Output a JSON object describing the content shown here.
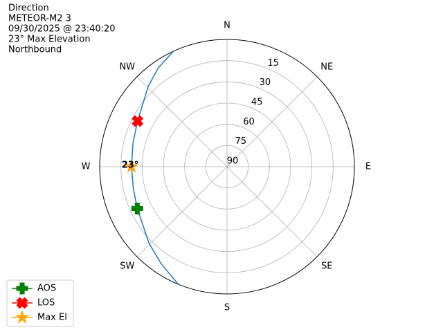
{
  "chart_data": {
    "type": "polar",
    "title_lines": [
      "Direction",
      "METEOR-M2 3",
      "09/30/2025 @ 23:40:20",
      "23° Max Elevation",
      "Northbound"
    ],
    "rlim": [
      90,
      0
    ],
    "rticks": [
      15,
      30,
      45,
      60,
      75,
      90
    ],
    "xticks": [
      {
        "value": 0,
        "label": "N"
      },
      {
        "value": 45,
        "label": "NE"
      },
      {
        "value": 90,
        "label": "E"
      },
      {
        "value": 135,
        "label": "SE"
      },
      {
        "value": 180,
        "label": "S"
      },
      {
        "value": 225,
        "label": "SW"
      },
      {
        "value": 270,
        "label": "W"
      },
      {
        "value": 315,
        "label": "NW"
      }
    ],
    "grid": true,
    "legend": "lower left",
    "series": [
      {
        "color": "#1f77b4",
        "marker": "none",
        "theta": [
          202.5,
          214,
          225.5,
          245,
          257,
          270,
          284,
          297,
          315.5,
          325,
          335
        ],
        "values": [
          0,
          7,
          12.7,
          20,
          22,
          22.5,
          21.5,
          19,
          10.5,
          5,
          0
        ]
      },
      {
        "name": "AOS",
        "color": "#008000",
        "marker": "plus",
        "theta": [
          245
        ],
        "values": [
          20
        ]
      },
      {
        "name": "LOS",
        "color": "#ff0000",
        "marker": "x",
        "theta": [
          297
        ],
        "values": [
          19
        ]
      },
      {
        "name": "Max El",
        "color": "#ffa500",
        "marker": "star",
        "theta": [
          270
        ],
        "values": [
          22.5
        ]
      }
    ],
    "annotation": "23°"
  }
}
